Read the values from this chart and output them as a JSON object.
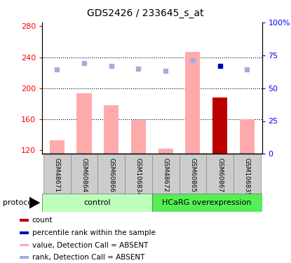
{
  "title": "GDS2426 / 233645_s_at",
  "samples": [
    "GSM48671",
    "GSM60864",
    "GSM60866",
    "GSM106834",
    "GSM48672",
    "GSM60865",
    "GSM60867",
    "GSM106835"
  ],
  "bar_values": [
    133,
    193,
    178,
    159,
    122,
    247,
    188,
    160
  ],
  "bar_colors": [
    "#ffaaaa",
    "#ffaaaa",
    "#ffaaaa",
    "#ffaaaa",
    "#ffaaaa",
    "#ffaaaa",
    "#bb0000",
    "#ffaaaa"
  ],
  "rank_values": [
    64,
    69,
    67,
    65,
    63,
    71,
    67,
    64
  ],
  "rank_colors": [
    "#aaaadd",
    "#aaaadd",
    "#aaaadd",
    "#aaaadd",
    "#aaaadd",
    "#aaaadd",
    "#0000bb",
    "#aaaadd"
  ],
  "ylim_left": [
    115,
    285
  ],
  "ylim_right": [
    0,
    100
  ],
  "yticks_left": [
    120,
    160,
    200,
    240,
    280
  ],
  "yticks_right": [
    0,
    25,
    50,
    75,
    100
  ],
  "sample_bg_color": "#cccccc",
  "ctrl_color_light": "#bbffbb",
  "overexp_color_dark": "#55ee55",
  "group_label_control": "control",
  "group_label_overexp": "HCaRG overexpression",
  "protocol_label": "protocol",
  "legend_items": [
    {
      "label": "count",
      "color": "#bb0000"
    },
    {
      "label": "percentile rank within the sample",
      "color": "#0000bb"
    },
    {
      "label": "value, Detection Call = ABSENT",
      "color": "#ffaaaa"
    },
    {
      "label": "rank, Detection Call = ABSENT",
      "color": "#aaaadd"
    }
  ],
  "fig_width": 4.15,
  "fig_height": 3.75,
  "dpi": 100
}
